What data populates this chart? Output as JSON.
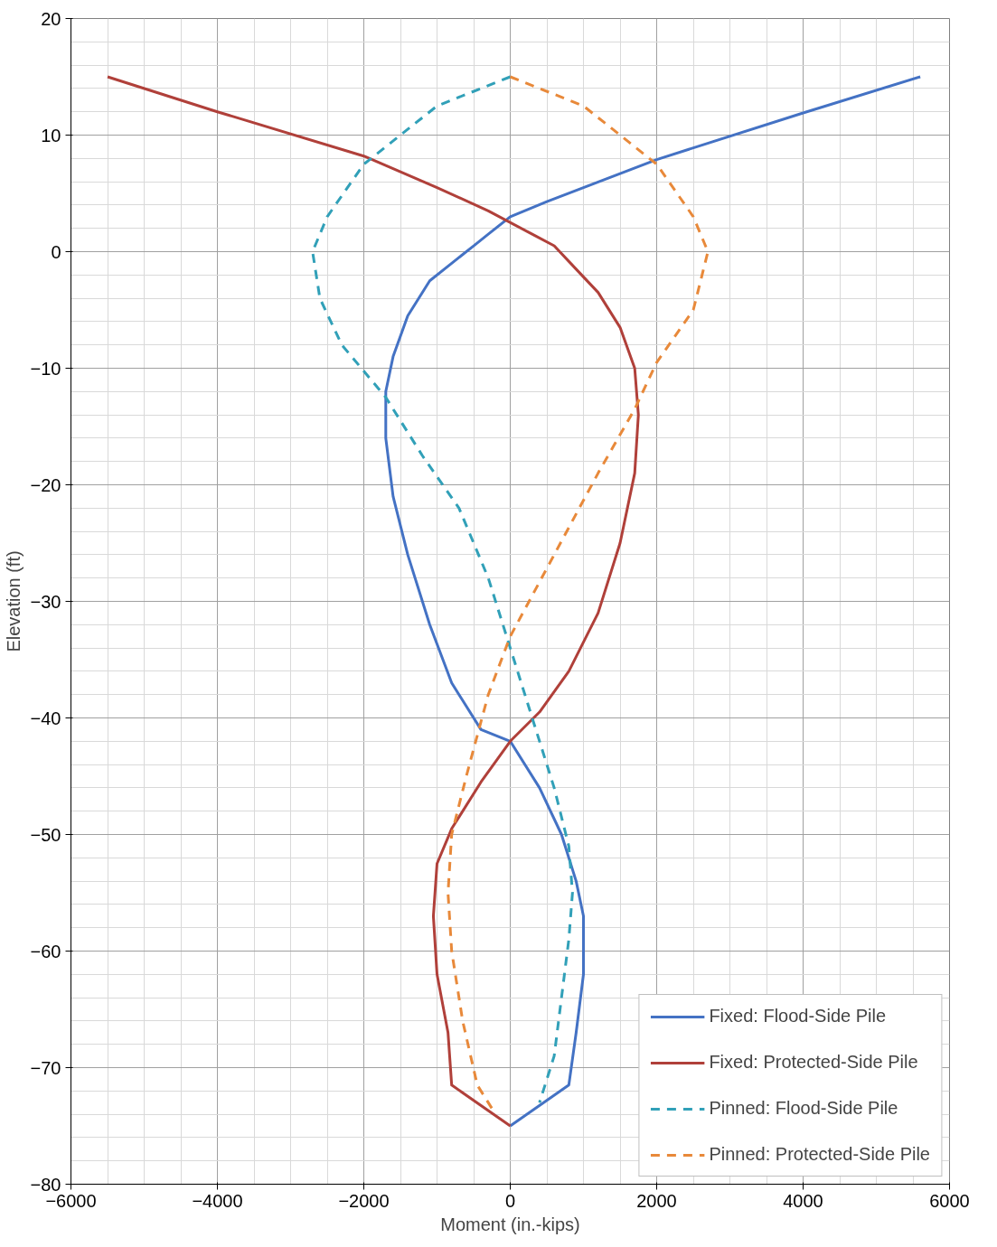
{
  "chart_data": {
    "type": "line",
    "xlabel": "Moment (in.-kips)",
    "ylabel": "Elevation (ft)",
    "xlim": [
      -6000,
      6000
    ],
    "ylim": [
      -80,
      20
    ],
    "xticks": [
      -6000,
      -4000,
      -2000,
      0,
      2000,
      4000,
      6000
    ],
    "yticks": [
      -80,
      -70,
      -60,
      -50,
      -40,
      -30,
      -20,
      -10,
      0,
      10,
      20
    ],
    "grid": true,
    "legend": "bottom right",
    "marker": "none",
    "series": [
      {
        "name": "Fixed: Flood-Side Pile",
        "color": "#4472c4",
        "line_style": "solid",
        "x": [
          5600,
          4000,
          2000,
          1000,
          500,
          0,
          -300,
          -500,
          -800,
          -1100,
          -1400,
          -1600,
          -1700,
          -1700,
          -1600,
          -1400,
          -1100,
          -800,
          -400,
          0,
          400,
          700,
          900,
          1000,
          1000,
          900,
          800,
          0
        ],
        "values": [
          15,
          11.9,
          7.9,
          5.5,
          4.3,
          3,
          1.5,
          0.5,
          -1,
          -2.5,
          -5.5,
          -9,
          -12,
          -16,
          -21,
          -26,
          -32,
          -37,
          -41,
          -42,
          -46,
          -50,
          -54,
          -57,
          -62,
          -67,
          -71.5,
          -75
        ]
      },
      {
        "name": "Fixed: Protected-Side Pile",
        "color": "#b0403a",
        "line_style": "solid",
        "x": [
          -5500,
          -4000,
          -2000,
          -1000,
          -300,
          300,
          600,
          900,
          1200,
          1500,
          1700,
          1750,
          1700,
          1500,
          1200,
          800,
          400,
          0,
          -400,
          -800,
          -1000,
          -1050,
          -1000,
          -850,
          -800,
          0
        ],
        "values": [
          15,
          12,
          8.2,
          5.5,
          3.5,
          1.5,
          0.5,
          -1.5,
          -3.5,
          -6.5,
          -10,
          -14,
          -19,
          -25,
          -31,
          -36,
          -39.5,
          -42,
          -45.5,
          -49.5,
          -52.5,
          -57,
          -62,
          -67,
          -71.5,
          -75
        ]
      },
      {
        "name": "Pinned: Flood-Side Pile",
        "color": "#31a0b8",
        "line_style": "dashed",
        "x": [
          0,
          -1000,
          -2000,
          -2500,
          -2700,
          -2600,
          -2300,
          -1700,
          -1200,
          -700,
          -300,
          0,
          300,
          600,
          800,
          850,
          800,
          700,
          600,
          400
        ],
        "values": [
          15,
          12.5,
          7.5,
          3,
          0,
          -4,
          -8,
          -12.5,
          -17.5,
          -22,
          -28,
          -34,
          -40,
          -46,
          -51,
          -55,
          -59,
          -64,
          -69,
          -73
        ]
      },
      {
        "name": "Pinned: Protected-Side Pile",
        "color": "#e8893a",
        "line_style": "dashed",
        "x": [
          0,
          1000,
          2000,
          2500,
          2700,
          2500,
          2000,
          1700,
          1200,
          600,
          0,
          -300,
          -600,
          -800,
          -850,
          -800,
          -650,
          -450,
          -200
        ],
        "values": [
          15,
          12.5,
          7.5,
          3,
          0,
          -5,
          -9.5,
          -13.5,
          -19,
          -26,
          -33,
          -38,
          -45,
          -50,
          -55,
          -60,
          -66,
          -71.5,
          -74
        ]
      }
    ]
  }
}
